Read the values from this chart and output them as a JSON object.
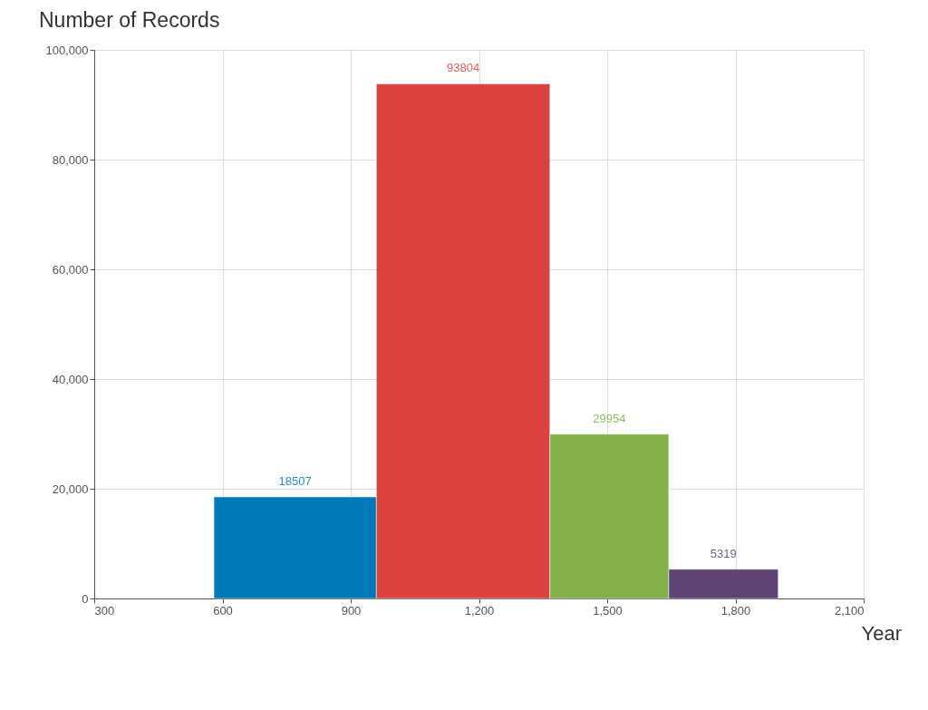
{
  "chart_data": {
    "type": "histogram",
    "title": "Number of Records",
    "xlabel": "Year",
    "bins": [
      580,
      960,
      1366,
      1644,
      1900
    ],
    "values": [
      18507,
      93804,
      29954,
      5319
    ],
    "colors": [
      "#0079b8",
      "#dc4340",
      "#86b04a",
      "#5d4475"
    ],
    "data_labels": true,
    "xlim": [
      300,
      2100
    ],
    "xticks": [
      300,
      600,
      900,
      {
        "value": 1200,
        "label": "1,200"
      },
      {
        "value": 1500,
        "label": "1,500"
      },
      {
        "value": 1800,
        "label": "1,800"
      },
      {
        "value": 2100,
        "label": "2,100"
      }
    ],
    "ylim": [
      0,
      100000
    ],
    "yticks": [
      0,
      {
        "value": 20000,
        "label": "20,000"
      },
      {
        "value": 40000,
        "label": "40,000"
      },
      {
        "value": 60000,
        "label": "60,000"
      },
      {
        "value": 80000,
        "label": "80,000"
      },
      {
        "value": 100000,
        "label": "100,000"
      }
    ],
    "grid": true
  }
}
